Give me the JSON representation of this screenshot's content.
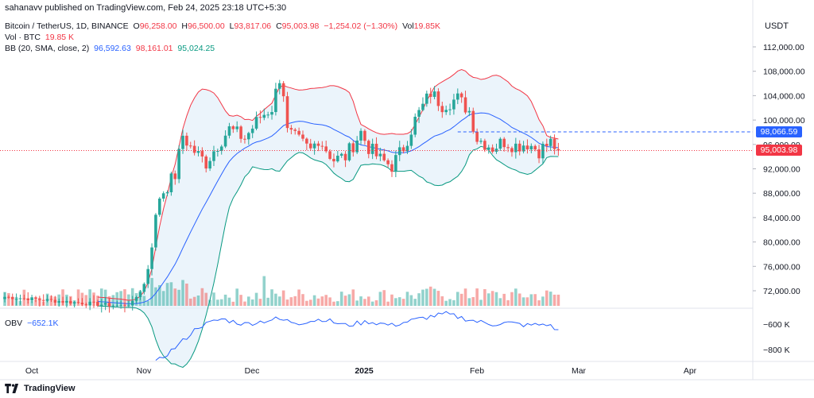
{
  "header": {
    "published": "sahanavv published on TradingView.com, Feb 24, 2025 23:18 UTC+5:30"
  },
  "legend": {
    "symbol": "Bitcoin / TetherUS, 1D, BINANCE",
    "o_label": "O",
    "o": "96,258.00",
    "h_label": "H",
    "h": "96,500.00",
    "l_label": "L",
    "l": "93,817.06",
    "c_label": "C",
    "c": "95,003.98",
    "chg": "−1,254.02 (−1.30%)",
    "vol_label": "Vol",
    "vol": "19.85K",
    "vol_btc_label": "Vol · BTC",
    "vol_btc": "19.85 K",
    "bb_label": "BB (20, SMA, close, 2)",
    "bb_mid": "96,592.63",
    "bb_up": "98,161.01",
    "bb_low": "95,024.25",
    "obv_label": "OBV",
    "obv": "−652.1K"
  },
  "axis_unit": "USDT",
  "tags": {
    "dashed_level": "98,066.59",
    "last_price": "95,003.98"
  },
  "footer": {
    "brand": "TradingView"
  },
  "colors": {
    "up": "#26a69a",
    "down": "#ef5350",
    "bb_mid": "#2962ff",
    "bb_up": "#f23645",
    "bb_low": "#089981",
    "bb_fill": "#e3effa",
    "obv": "#2962ff",
    "dashed": "#2962ff"
  },
  "chart_data": {
    "type": "candlestick",
    "price_ticks": [
      "112,000.00",
      "108,000.00",
      "104,000.00",
      "100,000.00",
      "96,000.00",
      "92,000.00",
      "88,000.00",
      "84,000.00",
      "80,000.00",
      "76,000.00",
      "72,000.00"
    ],
    "price_tick_values": [
      112000,
      108000,
      104000,
      100000,
      96000,
      92000,
      88000,
      84000,
      80000,
      76000,
      72000
    ],
    "obv_ticks": [
      "−600 K",
      "−800 K"
    ],
    "obv_tick_values": [
      -600,
      -800
    ],
    "x_ticks": [
      "Oct",
      "Nov",
      "Dec",
      "2025",
      "Feb",
      "Mar",
      "Apr"
    ],
    "dashed_level": 98066.59,
    "last_price": 95003.98,
    "anchors": [
      [
        0,
        71000
      ],
      [
        30,
        69500
      ],
      [
        33,
        70000
      ],
      [
        36,
        73000
      ],
      [
        37,
        76000
      ],
      [
        38,
        80000
      ],
      [
        40,
        87500
      ],
      [
        44,
        91000
      ],
      [
        46,
        97500
      ],
      [
        48,
        95500
      ],
      [
        52,
        93000
      ],
      [
        55,
        96000
      ],
      [
        58,
        98500
      ],
      [
        62,
        97000
      ],
      [
        66,
        100500
      ],
      [
        69,
        102000
      ],
      [
        71,
        107000
      ],
      [
        72,
        104500
      ],
      [
        73,
        98000
      ],
      [
        76,
        96500
      ],
      [
        79,
        95000
      ],
      [
        81,
        97000
      ],
      [
        85,
        93500
      ],
      [
        88,
        94000
      ],
      [
        92,
        98000
      ],
      [
        94,
        95500
      ],
      [
        97,
        93500
      ],
      [
        100,
        92500
      ],
      [
        103,
        95500
      ],
      [
        106,
        100000
      ],
      [
        110,
        104500
      ],
      [
        113,
        102500
      ],
      [
        117,
        103500
      ],
      [
        120,
        101500
      ],
      [
        122,
        97000
      ],
      [
        126,
        95500
      ],
      [
        129,
        96500
      ],
      [
        132,
        95800
      ],
      [
        135,
        96200
      ],
      [
        138,
        95000
      ],
      [
        141,
        96300
      ],
      [
        143,
        95003
      ]
    ],
    "volume_note": "relative volume bars, 0-1 scale",
    "obv_anchors": [
      [
        0,
        -1300
      ],
      [
        28,
        -1190
      ],
      [
        35,
        -1000
      ],
      [
        45,
        -760
      ],
      [
        50,
        -620
      ],
      [
        56,
        -560
      ],
      [
        62,
        -600
      ],
      [
        70,
        -560
      ],
      [
        76,
        -590
      ],
      [
        82,
        -560
      ],
      [
        88,
        -610
      ],
      [
        94,
        -580
      ],
      [
        100,
        -610
      ],
      [
        104,
        -580
      ],
      [
        110,
        -540
      ],
      [
        114,
        -520
      ],
      [
        118,
        -550
      ],
      [
        122,
        -580
      ],
      [
        126,
        -600
      ],
      [
        130,
        -590
      ],
      [
        135,
        -610
      ],
      [
        140,
        -600
      ],
      [
        143,
        -652
      ]
    ]
  }
}
